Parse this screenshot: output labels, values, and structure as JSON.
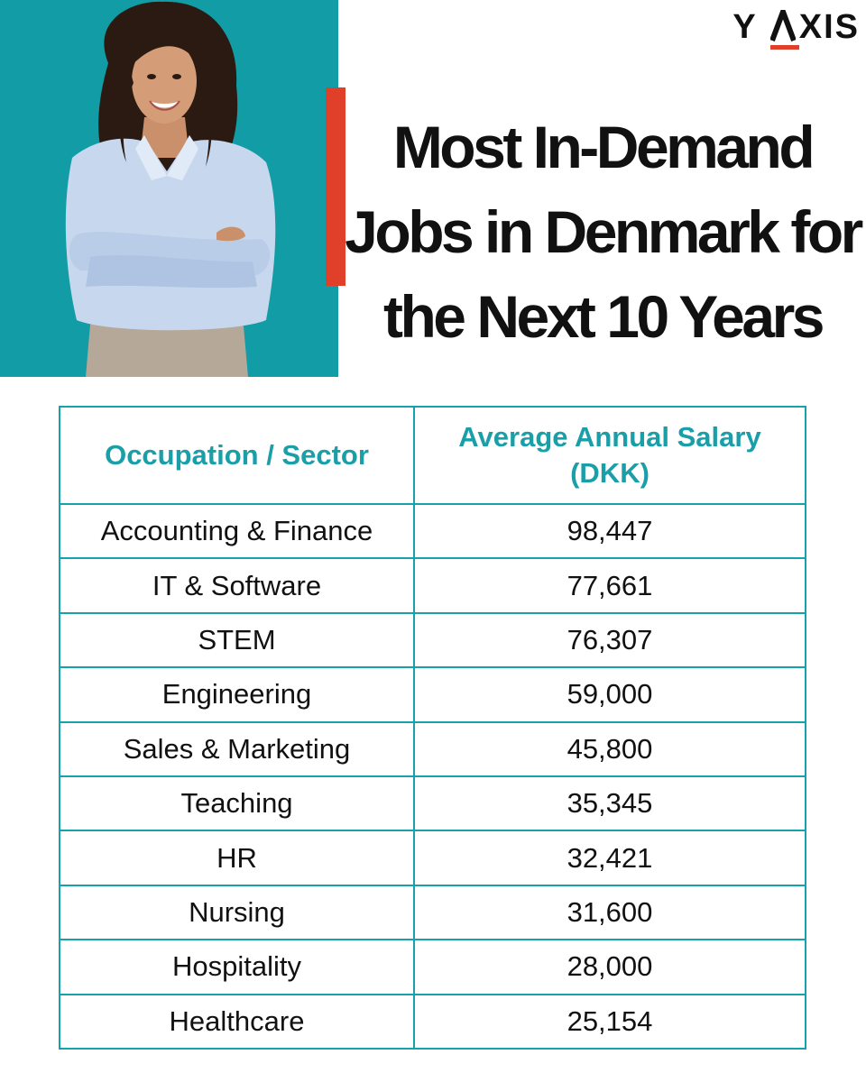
{
  "brand": {
    "logo_text_left": "Y",
    "logo_text_right": "XIS",
    "accent_color": "#e0402a",
    "teal_color": "#129da6"
  },
  "hero": {
    "photo": "smiling-woman-crossed-arms"
  },
  "title": {
    "line1": "Most In-Demand",
    "line2": "Jobs in Denmark for",
    "line3": "the Next 10 Years"
  },
  "table": {
    "headers": [
      "Occupation / Sector",
      "Average Annual Salary (DKK)"
    ],
    "rows": [
      {
        "occupation": "Accounting & Finance",
        "salary": "98,447"
      },
      {
        "occupation": "IT & Software",
        "salary": "77,661"
      },
      {
        "occupation": "STEM",
        "salary": "76,307"
      },
      {
        "occupation": "Engineering",
        "salary": "59,000"
      },
      {
        "occupation": "Sales & Marketing",
        "salary": "45,800"
      },
      {
        "occupation": "Teaching",
        "salary": "35,345"
      },
      {
        "occupation": "HR",
        "salary": "32,421"
      },
      {
        "occupation": "Nursing",
        "salary": "31,600"
      },
      {
        "occupation": "Hospitality",
        "salary": "28,000"
      },
      {
        "occupation": "Healthcare",
        "salary": "25,154"
      }
    ]
  }
}
